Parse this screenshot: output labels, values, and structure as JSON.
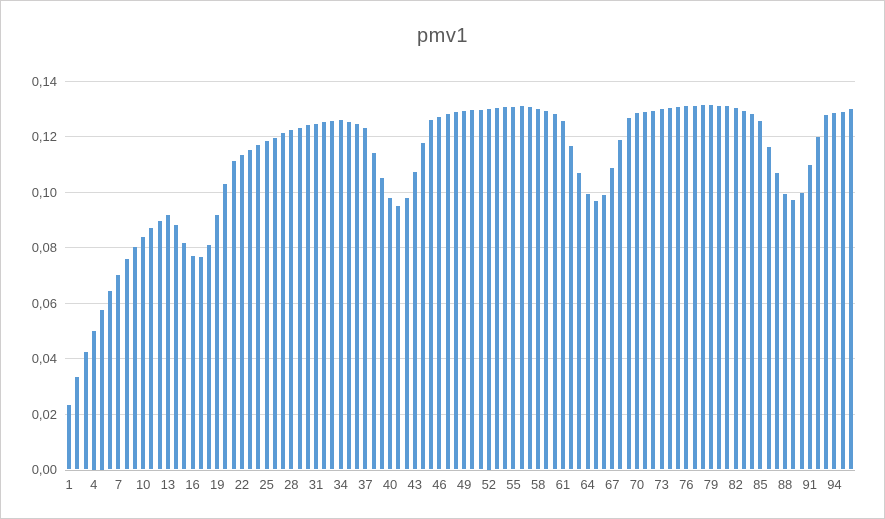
{
  "chart_data": {
    "type": "bar",
    "title": "pmv1",
    "x": [
      1,
      2,
      3,
      4,
      5,
      6,
      7,
      8,
      9,
      10,
      11,
      12,
      13,
      14,
      15,
      16,
      17,
      18,
      19,
      20,
      21,
      22,
      23,
      24,
      25,
      26,
      27,
      28,
      29,
      30,
      31,
      32,
      33,
      34,
      35,
      36,
      37,
      38,
      39,
      40,
      41,
      42,
      43,
      44,
      45,
      46,
      47,
      48,
      49,
      50,
      51,
      52,
      53,
      54,
      55,
      56,
      57,
      58,
      59,
      60,
      61,
      62,
      63,
      64,
      65,
      66,
      67,
      68,
      69,
      70,
      71,
      72,
      73,
      74,
      75,
      76,
      77,
      78,
      79,
      80,
      81,
      82,
      83,
      84,
      85,
      86,
      87,
      88,
      89,
      90,
      91,
      92,
      93,
      94,
      95,
      96
    ],
    "values": [
      0.0232,
      0.0335,
      0.0422,
      0.05,
      0.0575,
      0.0644,
      0.0701,
      0.076,
      0.0801,
      0.0839,
      0.0869,
      0.0897,
      0.0917,
      0.0882,
      0.0816,
      0.0768,
      0.0764,
      0.0808,
      0.0917,
      0.103,
      0.1112,
      0.1134,
      0.1152,
      0.1168,
      0.1184,
      0.1196,
      0.1212,
      0.1222,
      0.1231,
      0.124,
      0.1246,
      0.1252,
      0.1256,
      0.1258,
      0.1251,
      0.1244,
      0.123,
      0.1139,
      0.1051,
      0.0977,
      0.0951,
      0.0977,
      0.1073,
      0.1177,
      0.1259,
      0.1272,
      0.1281,
      0.1288,
      0.1291,
      0.1294,
      0.1297,
      0.13,
      0.1303,
      0.1306,
      0.1308,
      0.131,
      0.1306,
      0.1299,
      0.1291,
      0.1281,
      0.1255,
      0.1164,
      0.107,
      0.0994,
      0.0969,
      0.099,
      0.1085,
      0.1186,
      0.1268,
      0.1283,
      0.1289,
      0.1293,
      0.1298,
      0.1302,
      0.1306,
      0.1309,
      0.1311,
      0.1313,
      0.1313,
      0.1311,
      0.1309,
      0.1301,
      0.1292,
      0.1281,
      0.1256,
      0.1161,
      0.1068,
      0.0994,
      0.097,
      0.0995,
      0.1098,
      0.1199,
      0.1276,
      0.1285,
      0.129,
      0.1299
    ],
    "xtick_labels": [
      "1",
      "4",
      "7",
      "10",
      "13",
      "16",
      "19",
      "22",
      "25",
      "28",
      "31",
      "34",
      "37",
      "40",
      "43",
      "46",
      "49",
      "52",
      "55",
      "58",
      "61",
      "64",
      "67",
      "70",
      "73",
      "76",
      "79",
      "82",
      "85",
      "88",
      "91",
      "94"
    ],
    "xtick_positions": [
      1,
      4,
      7,
      10,
      13,
      16,
      19,
      22,
      25,
      28,
      31,
      34,
      37,
      40,
      43,
      46,
      49,
      52,
      55,
      58,
      61,
      64,
      67,
      70,
      73,
      76,
      79,
      82,
      85,
      88,
      91,
      94
    ],
    "ytick_labels": [
      "0,00",
      "0,02",
      "0,04",
      "0,06",
      "0,08",
      "0,10",
      "0,12",
      "0,14"
    ],
    "ytick_values": [
      0.0,
      0.02,
      0.04,
      0.06,
      0.08,
      0.1,
      0.12,
      0.14
    ],
    "ylim": [
      0,
      0.14
    ],
    "decimal_separator": ",",
    "grid": true,
    "legend_position": "none",
    "colors": {
      "bar": "#5b9bd5",
      "gridline": "#d9d9d9",
      "axis_line": "#bfbfbf",
      "text": "#595959",
      "background": "#ffffff",
      "border": "#d0cece"
    }
  }
}
